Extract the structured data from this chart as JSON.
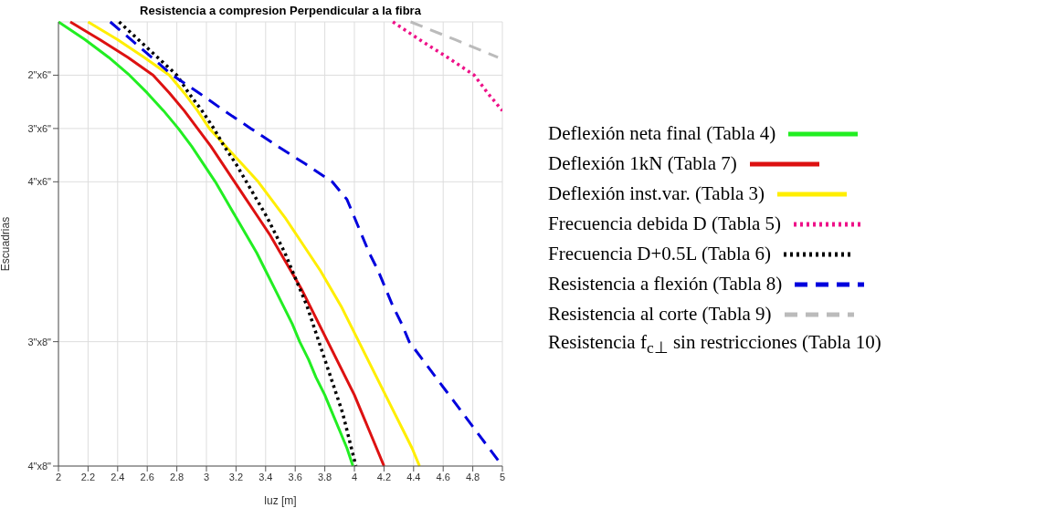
{
  "chart_data": {
    "type": "line",
    "orientation": "horizontal",
    "title": "Resistencia a compresion Perpendicular a la fibra",
    "xlabel": "luz [m]",
    "ylabel": "Escuadrias",
    "categories": [
      null,
      null,
      null,
      "2\"x6\"",
      null,
      null,
      "3\"x6\"",
      null,
      null,
      "4\"x6\"",
      null,
      null,
      null,
      null,
      null,
      null,
      null,
      null,
      "3\"x8\"",
      null,
      null,
      null,
      null,
      null,
      null,
      "4\"x8\""
    ],
    "xlim": [
      2,
      5
    ],
    "xticks": [
      2,
      2.2,
      2.4,
      2.6,
      2.8,
      3,
      3.2,
      3.4,
      3.6,
      3.8,
      4,
      4.2,
      4.4,
      4.6,
      4.8,
      5
    ],
    "grid": true,
    "legend": "right",
    "marker": "none",
    "series": [
      {
        "name": "Deflexión neta final (Tabla 4)",
        "color": "#22ee22",
        "line_style": "solid",
        "values": [
          2.0,
          2.18,
          2.34,
          2.48,
          2.6,
          2.71,
          2.81,
          2.9,
          2.98,
          3.06,
          3.13,
          3.2,
          3.27,
          3.34,
          3.4,
          3.46,
          3.52,
          3.58,
          3.63,
          3.69,
          3.74,
          3.8,
          3.85,
          3.9,
          3.95,
          3.99
        ]
      },
      {
        "name": "Deflexión 1kN (Tabla 7)",
        "color": "#dd1111",
        "line_style": "solid",
        "values": [
          2.08,
          2.28,
          2.47,
          2.64,
          2.75,
          2.85,
          2.94,
          3.03,
          3.11,
          3.19,
          3.27,
          3.35,
          3.43,
          3.5,
          3.57,
          3.64,
          3.7,
          3.76,
          3.82,
          3.88,
          3.94,
          4.0,
          4.05,
          4.1,
          4.15,
          4.2
        ]
      },
      {
        "name": "Deflexión inst.var. (Tabla 3)",
        "color": "#ffee00",
        "line_style": "solid",
        "values": [
          2.2,
          2.4,
          2.58,
          2.75,
          2.85,
          2.94,
          3.02,
          3.13,
          3.24,
          3.35,
          3.44,
          3.53,
          3.61,
          3.69,
          3.77,
          3.84,
          3.91,
          3.97,
          4.03,
          4.09,
          4.15,
          4.21,
          4.27,
          4.33,
          4.39,
          4.44
        ]
      },
      {
        "name": "Frecuencia debida D (Tabla 5)",
        "color": "#ee1188",
        "line_style": "dotted",
        "values": [
          4.26,
          4.44,
          4.63,
          4.81,
          4.9,
          5.0,
          null,
          null,
          null,
          null,
          null,
          null,
          null,
          null,
          null,
          null,
          null,
          null,
          null,
          null,
          null,
          null,
          null,
          null,
          null,
          null
        ]
      },
      {
        "name": "Frecuencia D+0.5L (Tabla 6)",
        "color": "#000000",
        "line_style": "dotted",
        "values": [
          2.41,
          2.54,
          2.67,
          2.8,
          2.88,
          2.97,
          3.05,
          3.12,
          3.2,
          3.27,
          3.34,
          3.41,
          3.47,
          3.53,
          3.58,
          3.63,
          3.68,
          3.72,
          3.76,
          3.8,
          3.84,
          3.88,
          3.92,
          3.95,
          3.98,
          4.01
        ]
      },
      {
        "name": "Resistencia a flexión (Tabla 8)",
        "color": "#0000dd",
        "line_style": "dashed",
        "values": [
          2.35,
          2.49,
          2.63,
          2.77,
          2.95,
          3.12,
          3.3,
          3.48,
          3.67,
          3.85,
          3.95,
          4.0,
          4.05,
          4.1,
          4.16,
          4.21,
          4.26,
          4.32,
          4.37,
          4.46,
          4.55,
          4.64,
          4.73,
          4.82,
          4.91,
          5.0
        ]
      },
      {
        "name": "Resistencia al corte (Tabla 9)",
        "color": "#bbbbbb",
        "line_style": "dashed",
        "values": [
          4.38,
          4.68,
          4.97,
          null,
          null,
          null,
          null,
          null,
          null,
          null,
          null,
          null,
          null,
          null,
          null,
          null,
          null,
          null,
          null,
          null,
          null,
          null,
          null,
          null,
          null,
          null
        ]
      },
      {
        "name": "Resistencia f$_{c⊥}$ sin restricciones (Tabla 10)",
        "values": [
          null,
          null,
          null,
          null,
          null,
          null,
          null,
          null,
          null,
          null,
          null,
          null,
          null,
          null,
          null,
          null,
          null,
          null,
          null,
          null,
          null,
          null,
          null,
          null,
          null,
          null
        ]
      }
    ]
  }
}
